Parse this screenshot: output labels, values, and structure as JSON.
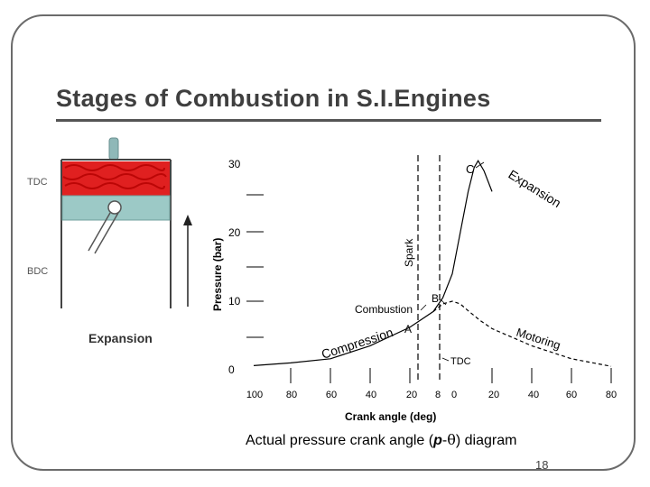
{
  "slide": {
    "title": "Stages of Combustion in S.I.Engines",
    "caption_prefix": "Actual pressure crank angle (",
    "caption_p": "p",
    "caption_dash": "-",
    "caption_theta": "θ",
    "caption_suffix": ") diagram",
    "page_number": "18"
  },
  "engine_figure": {
    "labels": {
      "tdc": "TDC",
      "bdc": "BDC",
      "stage": "Expansion"
    },
    "colors": {
      "gas": "#e02020",
      "piston": "#9cc9c6",
      "cylinder": "#444444"
    }
  },
  "chart_data": {
    "type": "line",
    "ylabel": "Pressure (bar)",
    "xlabel": "Crank angle (deg)",
    "y_ticks": [
      "30",
      "20",
      "10",
      "0"
    ],
    "x_ticks": [
      "100",
      "80",
      "60",
      "40",
      "20",
      "8",
      "0",
      "20",
      "40",
      "60",
      "80"
    ],
    "x_axis_note": "before TDC on left, after TDC on right",
    "series": [
      {
        "curve": "firing",
        "points": [
          [
            -100,
            0.6
          ],
          [
            -80,
            1.0
          ],
          [
            -60,
            1.6
          ],
          [
            -40,
            3.5
          ],
          [
            -20,
            6.2
          ],
          [
            -8,
            8.5
          ],
          [
            -4,
            10.5
          ],
          [
            0,
            14.0
          ],
          [
            4,
            20.0
          ],
          [
            8,
            26.0
          ],
          [
            11,
            29.5
          ],
          [
            13,
            30.5
          ],
          [
            16,
            29.0
          ],
          [
            20,
            26.0
          ]
        ]
      },
      {
        "curve": "motoring",
        "style": "dashed",
        "points": [
          [
            -8,
            8.5
          ],
          [
            -4,
            9.6
          ],
          [
            0,
            10.0
          ],
          [
            4,
            9.6
          ],
          [
            8,
            8.6
          ],
          [
            14,
            7.2
          ],
          [
            20,
            6.0
          ],
          [
            40,
            3.5
          ],
          [
            60,
            1.6
          ],
          [
            80,
            0.5
          ]
        ]
      }
    ],
    "annotations": {
      "spark": "Spark",
      "point_a": "A",
      "point_b": "B",
      "point_c": "C",
      "combustion": "Combustion",
      "compression": "Compression",
      "expansion": "Expansion",
      "motoring": "Motoring",
      "tdc": "TDC"
    },
    "grid": false,
    "legend": "none"
  }
}
